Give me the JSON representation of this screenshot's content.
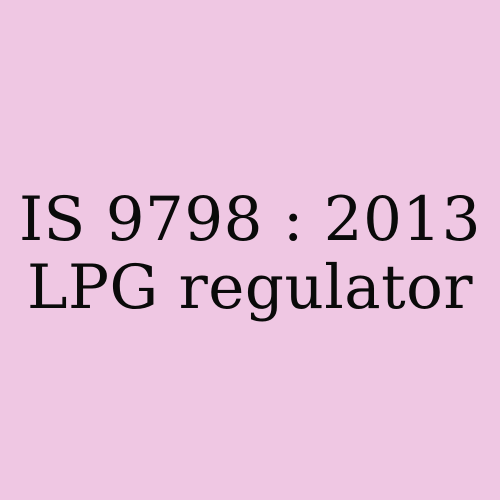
{
  "background_color": "#efc7e3",
  "text_color": "#0a0a0a",
  "lines": [
    "IS 9798 : 2013",
    "LPG regulator"
  ]
}
